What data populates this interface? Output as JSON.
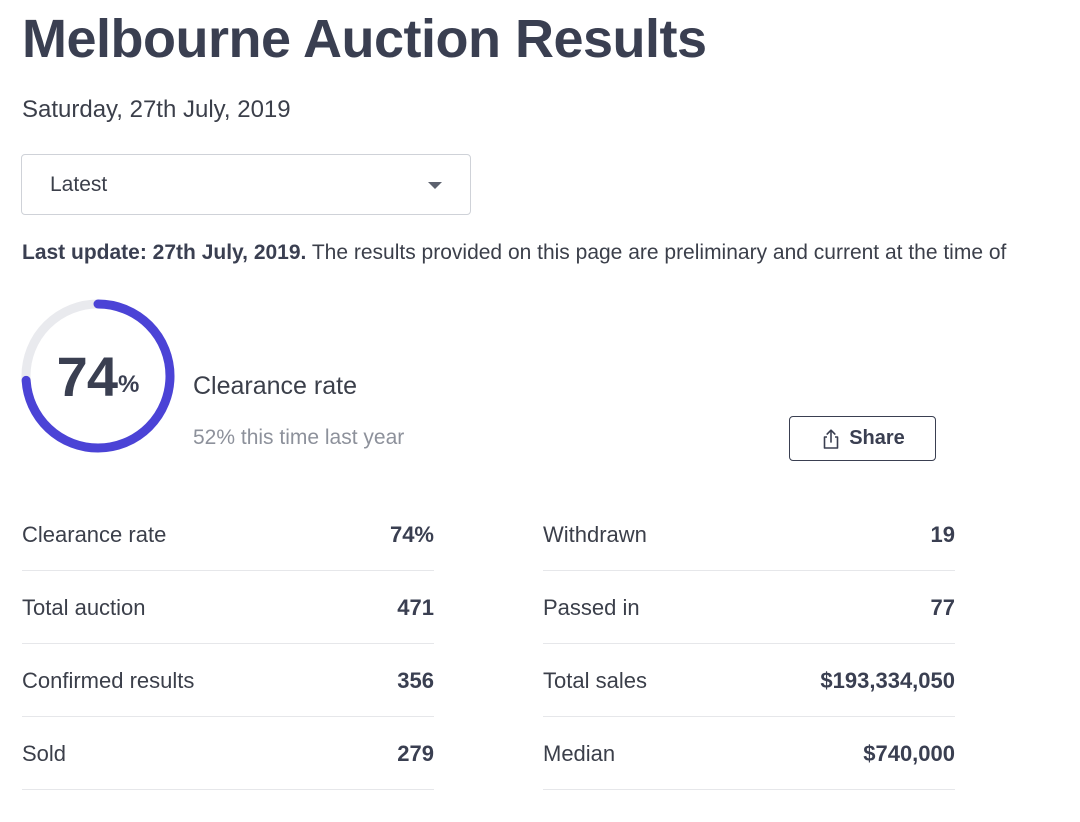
{
  "page": {
    "title": "Melbourne Auction Results",
    "date": "Saturday, 27th July, 2019"
  },
  "filter": {
    "selected": "Latest",
    "caret_icon": "chevron-down-icon"
  },
  "update": {
    "label": "Last update: 27th July, 2019.",
    "text": "The results provided on this page are preliminary and current at the time of"
  },
  "clearance": {
    "percent_value": 74,
    "number": "74",
    "unit": "%",
    "title": "Clearance rate",
    "last_year": "52% this time last year",
    "ring_color": "#4b43d6",
    "track_color": "#e9eaee"
  },
  "share": {
    "label": "Share",
    "icon": "share-icon"
  },
  "stats": {
    "left": [
      {
        "label": "Clearance rate",
        "value": "74%"
      },
      {
        "label": "Total auction",
        "value": "471"
      },
      {
        "label": "Confirmed results",
        "value": "356"
      },
      {
        "label": "Sold",
        "value": "279"
      }
    ],
    "right": [
      {
        "label": "Withdrawn",
        "value": "19"
      },
      {
        "label": "Passed in",
        "value": "77"
      },
      {
        "label": "Total sales",
        "value": "$193,334,050"
      },
      {
        "label": "Median",
        "value": "$740,000"
      }
    ]
  }
}
